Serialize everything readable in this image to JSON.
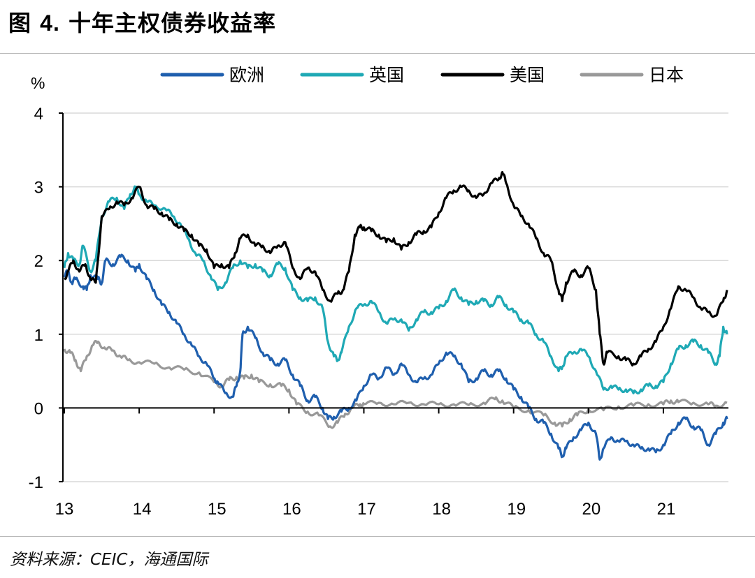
{
  "figure": {
    "title_prefix": "图",
    "title_number": "4.",
    "title_text": "十年主权债券收益率",
    "source": "资料来源：CEIC，海通国际"
  },
  "chart_data": {
    "type": "line",
    "title": "十年主权债券收益率",
    "ylabel": "%",
    "xlabel": "",
    "ylim": [
      -1,
      4
    ],
    "xlim": [
      2013,
      2021.85
    ],
    "yticks": [
      {
        "value": 4,
        "label": "4"
      },
      {
        "value": 3,
        "label": "3"
      },
      {
        "value": 2,
        "label": "2"
      },
      {
        "value": 1,
        "label": "1"
      },
      {
        "value": 0,
        "label": "0"
      },
      {
        "value": -1,
        "label": "-1"
      }
    ],
    "xticks": [
      {
        "value": 2013,
        "label": "13"
      },
      {
        "value": 2014,
        "label": "14"
      },
      {
        "value": 2015,
        "label": "15"
      },
      {
        "value": 2016,
        "label": "16"
      },
      {
        "value": 2017,
        "label": "17"
      },
      {
        "value": 2018,
        "label": "18"
      },
      {
        "value": 2019,
        "label": "19"
      },
      {
        "value": 2020,
        "label": "20"
      },
      {
        "value": 2021,
        "label": "21"
      }
    ],
    "grid": true,
    "legend_position": "top",
    "series": [
      {
        "name": "日本",
        "color": "#999999",
        "x": [
          2013.0,
          2013.08,
          2013.15,
          2013.22,
          2013.3,
          2013.38,
          2013.45,
          2013.55,
          2013.65,
          2013.75,
          2013.85,
          2014.0,
          2014.2,
          2014.4,
          2014.6,
          2014.8,
          2015.0,
          2015.1,
          2015.2,
          2015.3,
          2015.4,
          2015.5,
          2015.6,
          2015.75,
          2015.9,
          2016.0,
          2016.1,
          2016.25,
          2016.4,
          2016.55,
          2016.65,
          2016.75,
          2016.85,
          2016.95,
          2017.0,
          2017.2,
          2017.4,
          2017.6,
          2017.8,
          2018.0,
          2018.2,
          2018.4,
          2018.6,
          2018.75,
          2018.85,
          2019.0,
          2019.2,
          2019.4,
          2019.55,
          2019.65,
          2019.75,
          2019.85,
          2020.0,
          2020.2,
          2020.4,
          2020.6,
          2020.8,
          2021.0,
          2021.1,
          2021.2,
          2021.4,
          2021.6,
          2021.7,
          2021.85
        ],
        "values": [
          0.8,
          0.75,
          0.65,
          0.5,
          0.7,
          0.85,
          0.9,
          0.8,
          0.78,
          0.7,
          0.65,
          0.62,
          0.6,
          0.55,
          0.52,
          0.48,
          0.35,
          0.3,
          0.38,
          0.42,
          0.4,
          0.45,
          0.35,
          0.32,
          0.3,
          0.25,
          0.05,
          -0.05,
          -0.1,
          -0.25,
          -0.2,
          -0.08,
          0.0,
          0.05,
          0.05,
          0.07,
          0.05,
          0.07,
          0.05,
          0.05,
          0.05,
          0.04,
          0.07,
          0.12,
          0.1,
          0.0,
          -0.03,
          -0.1,
          -0.2,
          -0.25,
          -0.15,
          -0.1,
          -0.02,
          -0.03,
          0.02,
          0.03,
          0.05,
          0.05,
          0.1,
          0.08,
          0.07,
          0.05,
          0.03,
          0.07
        ]
      },
      {
        "name": "英国",
        "color": "#1fa9b5",
        "x": [
          2013.0,
          2013.05,
          2013.12,
          2013.2,
          2013.25,
          2013.35,
          2013.42,
          2013.5,
          2013.6,
          2013.7,
          2013.8,
          2013.88,
          2013.95,
          2014.0,
          2014.1,
          2014.2,
          2014.35,
          2014.45,
          2014.55,
          2014.65,
          2014.75,
          2014.85,
          2014.95,
          2015.05,
          2015.15,
          2015.25,
          2015.35,
          2015.45,
          2015.55,
          2015.65,
          2015.75,
          2015.85,
          2015.95,
          2016.05,
          2016.15,
          2016.25,
          2016.35,
          2016.45,
          2016.52,
          2016.6,
          2016.65,
          2016.7,
          2016.8,
          2016.9,
          2017.0,
          2017.1,
          2017.2,
          2017.3,
          2017.4,
          2017.5,
          2017.6,
          2017.7,
          2017.8,
          2017.9,
          2018.0,
          2018.1,
          2018.2,
          2018.3,
          2018.4,
          2018.5,
          2018.6,
          2018.7,
          2018.8,
          2018.9,
          2019.0,
          2019.1,
          2019.2,
          2019.3,
          2019.4,
          2019.5,
          2019.6,
          2019.65,
          2019.7,
          2019.8,
          2019.9,
          2020.0,
          2020.1,
          2020.2,
          2020.3,
          2020.4,
          2020.5,
          2020.6,
          2020.7,
          2020.8,
          2020.9,
          2021.0,
          2021.1,
          2021.2,
          2021.3,
          2021.4,
          2021.5,
          2021.6,
          2021.7,
          2021.75,
          2021.8,
          2021.85
        ],
        "values": [
          1.9,
          2.1,
          2.0,
          1.95,
          2.2,
          1.85,
          2.0,
          2.6,
          2.8,
          2.85,
          2.7,
          2.9,
          3.0,
          2.9,
          2.8,
          2.75,
          2.7,
          2.6,
          2.5,
          2.3,
          2.1,
          2.0,
          1.8,
          1.6,
          1.7,
          1.9,
          2.0,
          1.9,
          1.95,
          1.85,
          1.8,
          1.95,
          1.9,
          1.6,
          1.5,
          1.45,
          1.5,
          1.35,
          0.9,
          0.7,
          0.65,
          0.75,
          1.1,
          1.35,
          1.4,
          1.45,
          1.3,
          1.15,
          1.2,
          1.2,
          1.05,
          1.2,
          1.3,
          1.3,
          1.35,
          1.45,
          1.6,
          1.5,
          1.4,
          1.45,
          1.45,
          1.4,
          1.5,
          1.4,
          1.3,
          1.2,
          1.15,
          1.0,
          0.9,
          0.7,
          0.5,
          0.55,
          0.7,
          0.75,
          0.8,
          0.7,
          0.5,
          0.25,
          0.3,
          0.25,
          0.25,
          0.2,
          0.25,
          0.3,
          0.3,
          0.35,
          0.6,
          0.8,
          0.85,
          0.9,
          0.85,
          0.75,
          0.6,
          0.7,
          1.1,
          1.0
        ]
      },
      {
        "name": "欧洲",
        "color": "#1f5fae",
        "x": [
          2013.0,
          2013.05,
          2013.1,
          2013.15,
          2013.25,
          2013.3,
          2013.35,
          2013.45,
          2013.5,
          2013.55,
          2013.65,
          2013.75,
          2013.85,
          2013.95,
          2014.0,
          2014.1,
          2014.2,
          2014.3,
          2014.4,
          2014.5,
          2014.6,
          2014.7,
          2014.8,
          2014.9,
          2015.0,
          2015.05,
          2015.15,
          2015.25,
          2015.3,
          2015.35,
          2015.38,
          2015.45,
          2015.55,
          2015.65,
          2015.75,
          2015.85,
          2015.95,
          2016.05,
          2016.15,
          2016.25,
          2016.35,
          2016.45,
          2016.52,
          2016.6,
          2016.7,
          2016.8,
          2016.9,
          2017.0,
          2017.1,
          2017.2,
          2017.3,
          2017.4,
          2017.5,
          2017.6,
          2017.7,
          2017.8,
          2017.9,
          2018.0,
          2018.1,
          2018.2,
          2018.3,
          2018.4,
          2018.5,
          2018.6,
          2018.7,
          2018.8,
          2018.9,
          2019.0,
          2019.1,
          2019.2,
          2019.3,
          2019.4,
          2019.5,
          2019.6,
          2019.65,
          2019.7,
          2019.8,
          2019.9,
          2020.0,
          2020.1,
          2020.15,
          2020.2,
          2020.3,
          2020.4,
          2020.5,
          2020.6,
          2020.7,
          2020.8,
          2020.9,
          2021.0,
          2021.1,
          2021.2,
          2021.3,
          2021.4,
          2021.5,
          2021.6,
          2021.7,
          2021.8,
          2021.85
        ],
        "values": [
          1.8,
          1.85,
          1.7,
          1.75,
          1.65,
          1.6,
          1.8,
          1.75,
          1.7,
          2.0,
          1.95,
          2.05,
          2.0,
          1.85,
          1.95,
          1.75,
          1.6,
          1.4,
          1.3,
          1.15,
          1.0,
          0.85,
          0.7,
          0.6,
          0.4,
          0.35,
          0.2,
          0.15,
          0.3,
          0.5,
          1.0,
          1.1,
          0.95,
          0.75,
          0.65,
          0.6,
          0.65,
          0.45,
          0.3,
          0.1,
          0.15,
          0.0,
          -0.15,
          -0.12,
          -0.05,
          0.0,
          0.1,
          0.3,
          0.45,
          0.4,
          0.55,
          0.45,
          0.6,
          0.45,
          0.35,
          0.4,
          0.45,
          0.6,
          0.75,
          0.7,
          0.6,
          0.35,
          0.4,
          0.5,
          0.45,
          0.5,
          0.4,
          0.25,
          0.15,
          0.0,
          -0.15,
          -0.2,
          -0.35,
          -0.55,
          -0.65,
          -0.55,
          -0.4,
          -0.3,
          -0.2,
          -0.35,
          -0.7,
          -0.55,
          -0.4,
          -0.45,
          -0.45,
          -0.5,
          -0.55,
          -0.55,
          -0.6,
          -0.5,
          -0.35,
          -0.2,
          -0.15,
          -0.25,
          -0.3,
          -0.5,
          -0.35,
          -0.2,
          -0.15
        ]
      },
      {
        "name": "美国",
        "color": "#000000",
        "x": [
          2013.0,
          2013.05,
          2013.12,
          2013.2,
          2013.28,
          2013.35,
          2013.42,
          2013.5,
          2013.6,
          2013.7,
          2013.8,
          2013.9,
          2014.0,
          2014.1,
          2014.2,
          2014.3,
          2014.4,
          2014.5,
          2014.6,
          2014.7,
          2014.8,
          2014.9,
          2015.0,
          2015.1,
          2015.2,
          2015.28,
          2015.35,
          2015.45,
          2015.55,
          2015.65,
          2015.75,
          2015.85,
          2015.95,
          2016.05,
          2016.15,
          2016.25,
          2016.35,
          2016.45,
          2016.55,
          2016.65,
          2016.72,
          2016.8,
          2016.88,
          2016.95,
          2017.0,
          2017.1,
          2017.2,
          2017.3,
          2017.4,
          2017.5,
          2017.6,
          2017.7,
          2017.8,
          2017.9,
          2018.0,
          2018.1,
          2018.2,
          2018.3,
          2018.4,
          2018.5,
          2018.6,
          2018.7,
          2018.8,
          2018.85,
          2018.9,
          2019.0,
          2019.1,
          2019.2,
          2019.3,
          2019.4,
          2019.5,
          2019.6,
          2019.65,
          2019.7,
          2019.8,
          2019.9,
          2020.0,
          2020.1,
          2020.15,
          2020.2,
          2020.25,
          2020.4,
          2020.5,
          2020.6,
          2020.7,
          2020.8,
          2020.9,
          2021.0,
          2021.1,
          2021.2,
          2021.3,
          2021.4,
          2021.5,
          2021.6,
          2021.7,
          2021.8,
          2021.85
        ],
        "values": [
          1.75,
          1.85,
          2.0,
          1.85,
          1.95,
          1.75,
          1.7,
          2.6,
          2.7,
          2.8,
          2.75,
          2.85,
          3.0,
          2.75,
          2.7,
          2.65,
          2.55,
          2.5,
          2.4,
          2.35,
          2.2,
          2.15,
          1.9,
          1.95,
          1.9,
          2.1,
          2.3,
          2.35,
          2.2,
          2.2,
          2.1,
          2.2,
          2.25,
          1.9,
          1.75,
          1.9,
          1.85,
          1.6,
          1.45,
          1.55,
          1.6,
          1.85,
          2.35,
          2.45,
          2.45,
          2.4,
          2.35,
          2.25,
          2.3,
          2.15,
          2.25,
          2.35,
          2.4,
          2.45,
          2.65,
          2.85,
          2.95,
          3.0,
          2.95,
          2.85,
          2.9,
          3.05,
          3.1,
          3.2,
          3.05,
          2.75,
          2.6,
          2.5,
          2.3,
          2.1,
          2.0,
          1.6,
          1.45,
          1.7,
          1.85,
          1.8,
          1.9,
          1.6,
          1.0,
          0.6,
          0.75,
          0.7,
          0.65,
          0.6,
          0.7,
          0.8,
          0.9,
          1.1,
          1.35,
          1.65,
          1.6,
          1.5,
          1.35,
          1.3,
          1.25,
          1.45,
          1.6
        ]
      }
    ]
  }
}
